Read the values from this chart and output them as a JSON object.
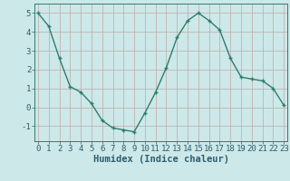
{
  "x": [
    0,
    1,
    2,
    3,
    4,
    5,
    6,
    7,
    8,
    9,
    10,
    11,
    12,
    13,
    14,
    15,
    16,
    17,
    18,
    19,
    20,
    21,
    22,
    23
  ],
  "y": [
    5.0,
    4.3,
    2.6,
    1.1,
    0.8,
    0.2,
    -0.7,
    -1.1,
    -1.2,
    -1.3,
    -0.3,
    0.8,
    2.1,
    3.7,
    4.6,
    5.0,
    4.6,
    4.1,
    2.6,
    1.6,
    1.5,
    1.4,
    1.0,
    0.1
  ],
  "line_color": "#2e7d6e",
  "marker_color": "#2e7d6e",
  "bg_color": "#cce8e8",
  "grid_color": "#c0a8a8",
  "axis_color": "#2e7d6e",
  "xlabel": "Humidex (Indice chaleur)",
  "ylim": [
    -1.8,
    5.5
  ],
  "xlim": [
    -0.3,
    23.3
  ],
  "yticks": [
    -1,
    0,
    1,
    2,
    3,
    4,
    5
  ],
  "xticks": [
    0,
    1,
    2,
    3,
    4,
    5,
    6,
    7,
    8,
    9,
    10,
    11,
    12,
    13,
    14,
    15,
    16,
    17,
    18,
    19,
    20,
    21,
    22,
    23
  ],
  "font_color": "#2e5d6e",
  "xlabel_fontsize": 7.5,
  "tick_fontsize": 6.5,
  "line_width": 1.0,
  "marker_size": 3.0
}
